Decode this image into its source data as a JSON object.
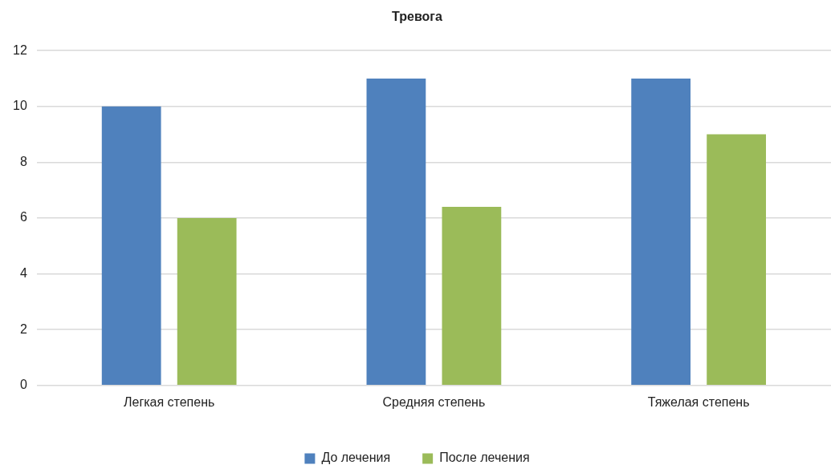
{
  "chart_data": {
    "type": "bar",
    "title": "Тревога",
    "categories": [
      "Легкая степень",
      "Средняя степень",
      "Тяжелая степень"
    ],
    "series": [
      {
        "name": "До лечения",
        "color": "#4f81bd",
        "values": [
          10,
          11,
          11
        ]
      },
      {
        "name": "После лечения",
        "color": "#9bbb59",
        "values": [
          6,
          6.4,
          9
        ]
      }
    ],
    "ylim": [
      0,
      12
    ],
    "yticks": [
      0,
      2,
      4,
      6,
      8,
      10,
      12
    ],
    "grid": "y",
    "legend": "bottom"
  }
}
